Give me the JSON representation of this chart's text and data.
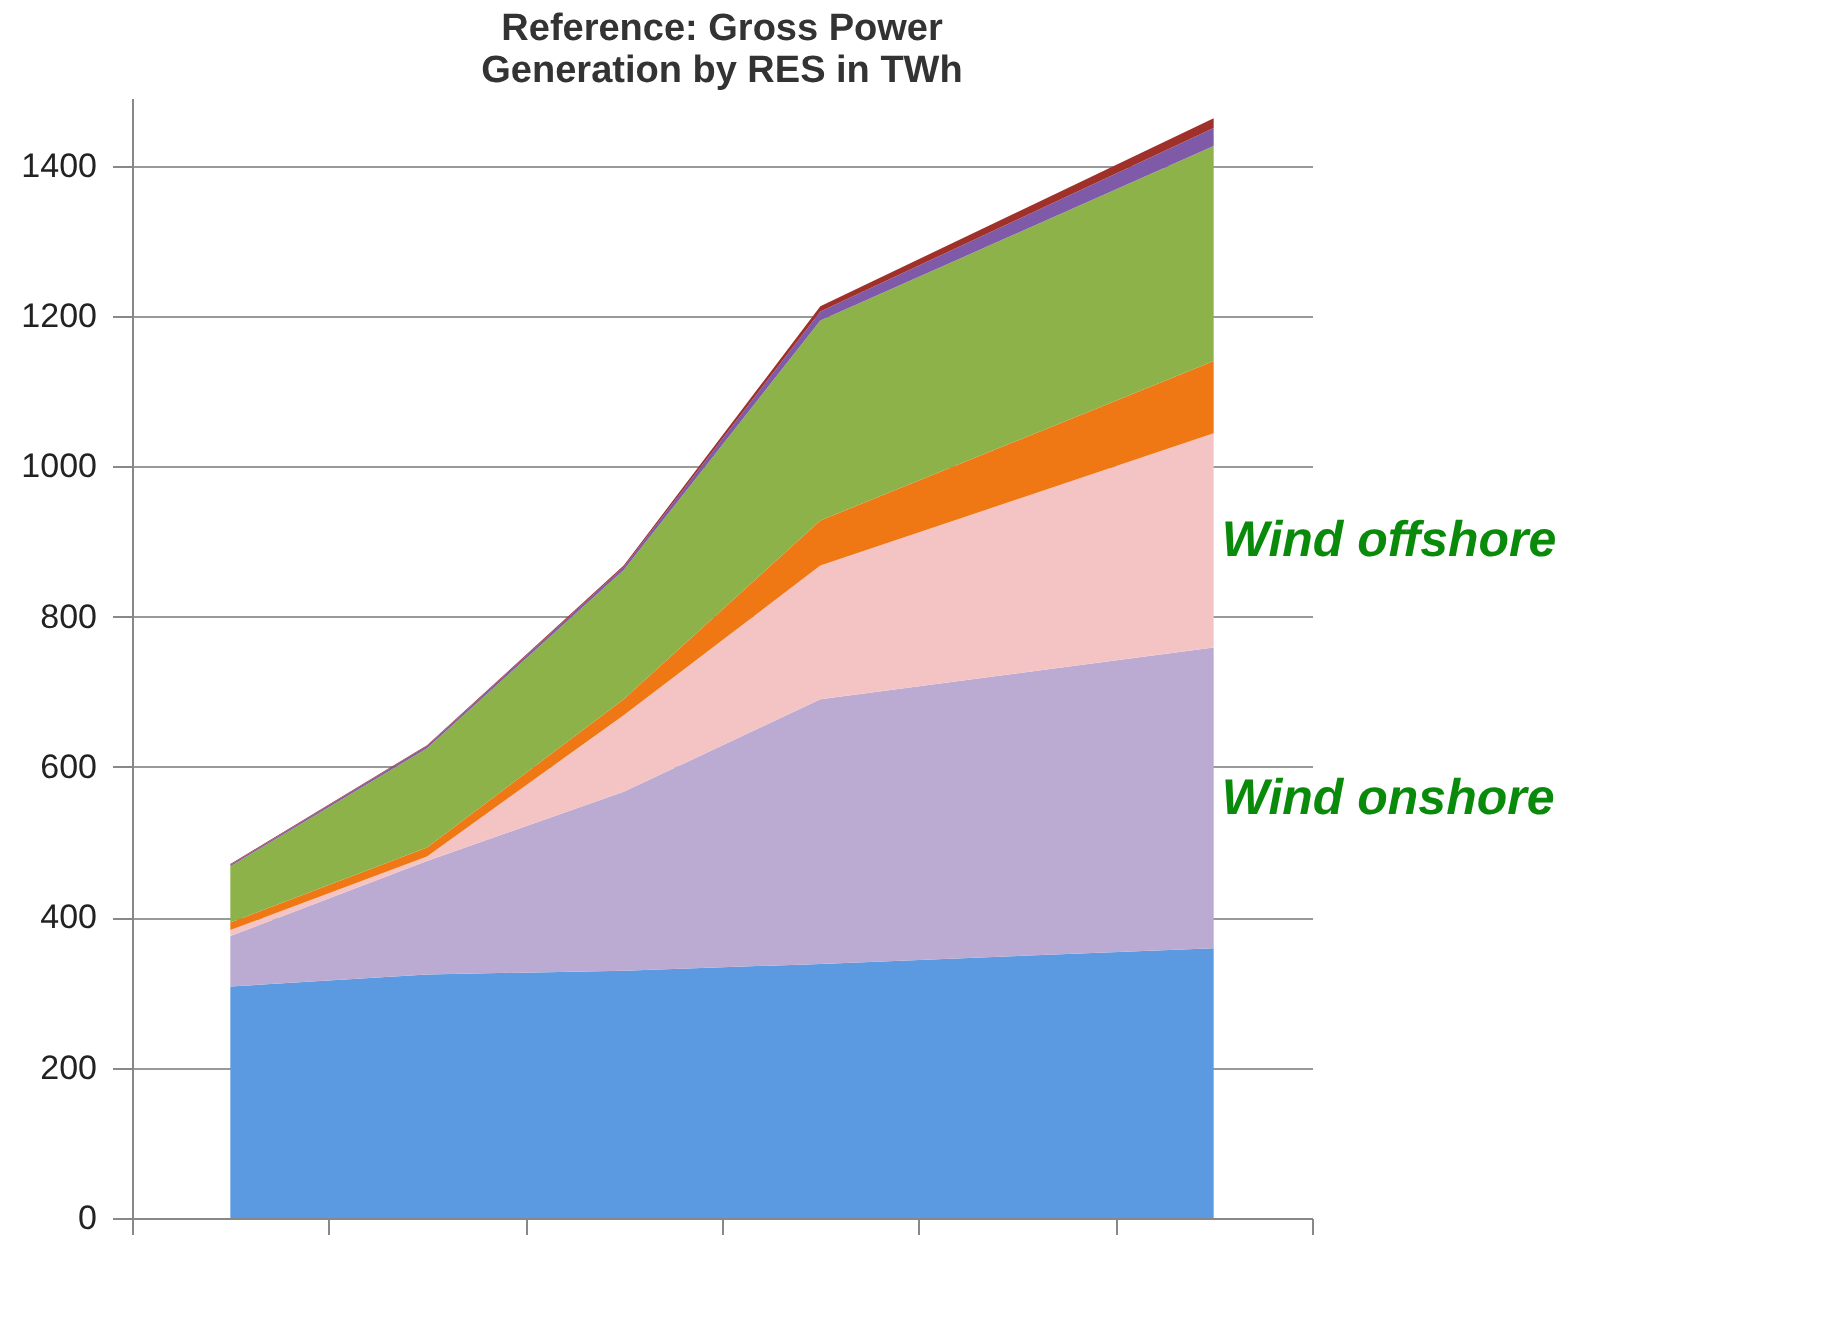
{
  "chart_data": {
    "type": "area",
    "stacked": true,
    "title": [
      "Reference: Gross Power",
      "Generation by RES in TWh"
    ],
    "categories": [
      null,
      null,
      null,
      null,
      null,
      null
    ],
    "ylim": [
      0,
      1490
    ],
    "yticks": [
      0,
      200,
      400,
      600,
      800,
      1000,
      1200,
      1400
    ],
    "grid": "y",
    "tick_labels": "y",
    "series": [
      {
        "color": "#5b9ae0",
        "values": [
          308,
          324,
          329,
          338,
          null,
          359
        ]
      },
      {
        "name": "Wind onshore",
        "color": "#bbaad2",
        "values": [
          67,
          151,
          238,
          352,
          null,
          400
        ]
      },
      {
        "name": "Wind offshore",
        "color": "#f4c4c4",
        "values": [
          8,
          6,
          102,
          178,
          null,
          285
        ]
      },
      {
        "color": "#f07814",
        "values": [
          10,
          12,
          21,
          60,
          null,
          96
        ]
      },
      {
        "color": "#8db24a",
        "values": [
          75,
          132,
          172,
          266,
          null,
          286
        ]
      },
      {
        "color": "#7e5aa8",
        "values": [
          2,
          3,
          4,
          12,
          null,
          24
        ]
      },
      {
        "color": "#a0302a",
        "values": [
          1,
          1,
          2,
          7,
          null,
          13
        ]
      }
    ]
  }
}
